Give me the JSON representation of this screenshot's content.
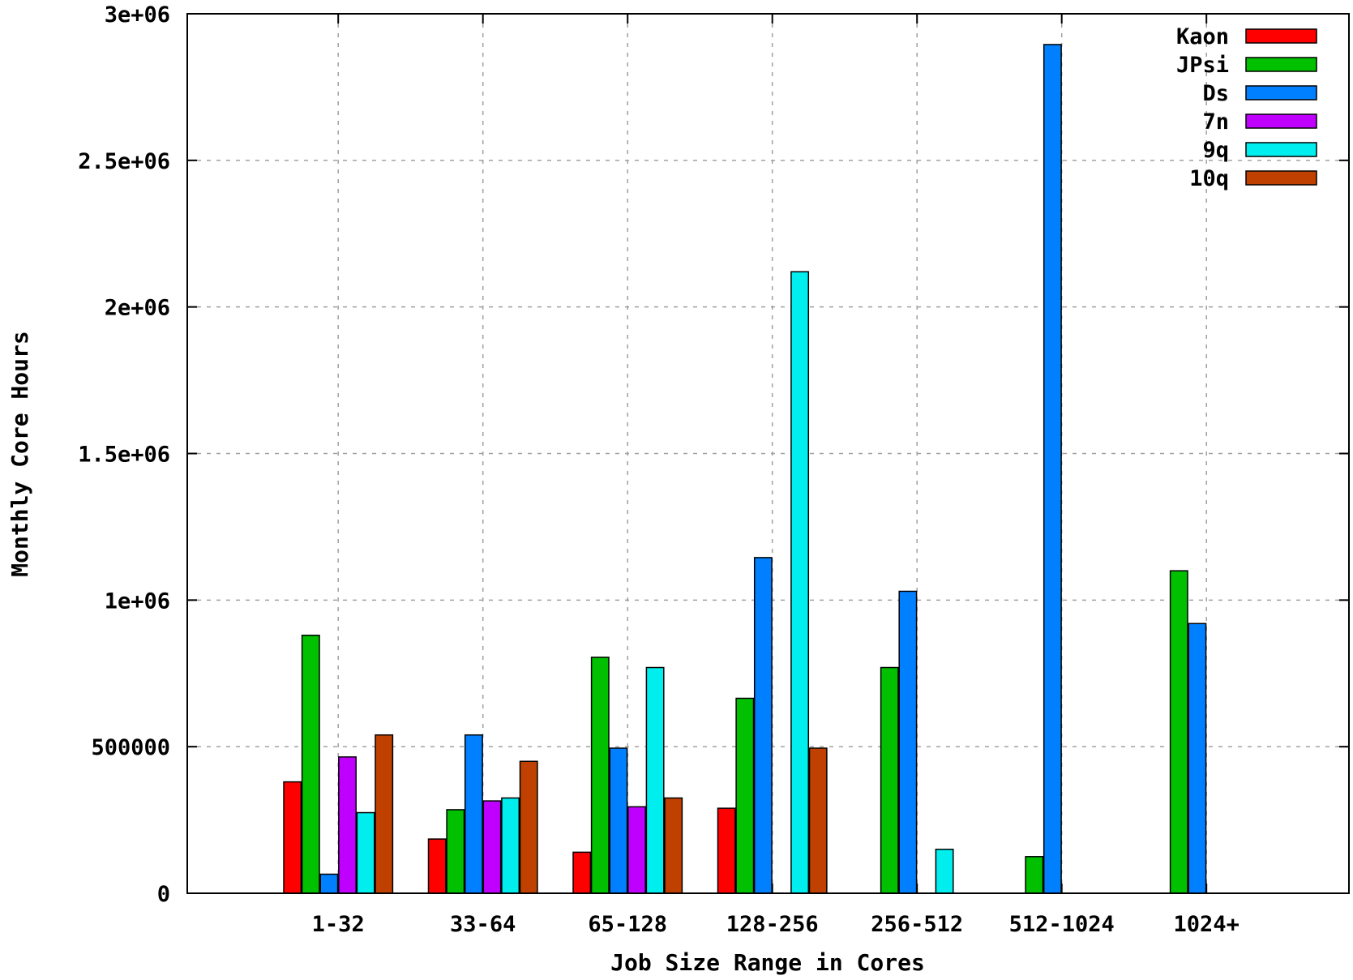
{
  "chart_data": {
    "type": "bar",
    "title": "",
    "xlabel": "Job Size Range in Cores",
    "ylabel": "Monthly Core Hours",
    "categories": [
      "1-32",
      "33-64",
      "65-128",
      "128-256",
      "256-512",
      "512-1024",
      "1024+"
    ],
    "ylim": [
      0,
      3000000
    ],
    "yticks": [
      0,
      500000,
      1000000,
      1500000,
      2000000,
      2500000,
      3000000
    ],
    "ytick_labels": [
      "0",
      "500000",
      "1e+06",
      "1.5e+06",
      "2e+06",
      "2.5e+06",
      "3e+06"
    ],
    "grid": true,
    "legend_position": "top-right",
    "series": [
      {
        "name": "Kaon",
        "color": "#ff0000",
        "values": [
          380000,
          185000,
          140000,
          290000,
          0,
          0,
          0
        ]
      },
      {
        "name": "JPsi",
        "color": "#00c000",
        "values": [
          880000,
          285000,
          805000,
          665000,
          770000,
          125000,
          1100000
        ]
      },
      {
        "name": "Ds",
        "color": "#0080ff",
        "values": [
          65000,
          540000,
          495000,
          1145000,
          1030000,
          2895000,
          920000
        ]
      },
      {
        "name": "7n",
        "color": "#c000ff",
        "values": [
          465000,
          315000,
          295000,
          0,
          0,
          0,
          0
        ]
      },
      {
        "name": "9q",
        "color": "#00eeee",
        "values": [
          275000,
          325000,
          770000,
          2120000,
          150000,
          0,
          0
        ]
      },
      {
        "name": "10q",
        "color": "#c04000",
        "values": [
          540000,
          450000,
          325000,
          495000,
          0,
          0,
          0
        ]
      }
    ]
  }
}
